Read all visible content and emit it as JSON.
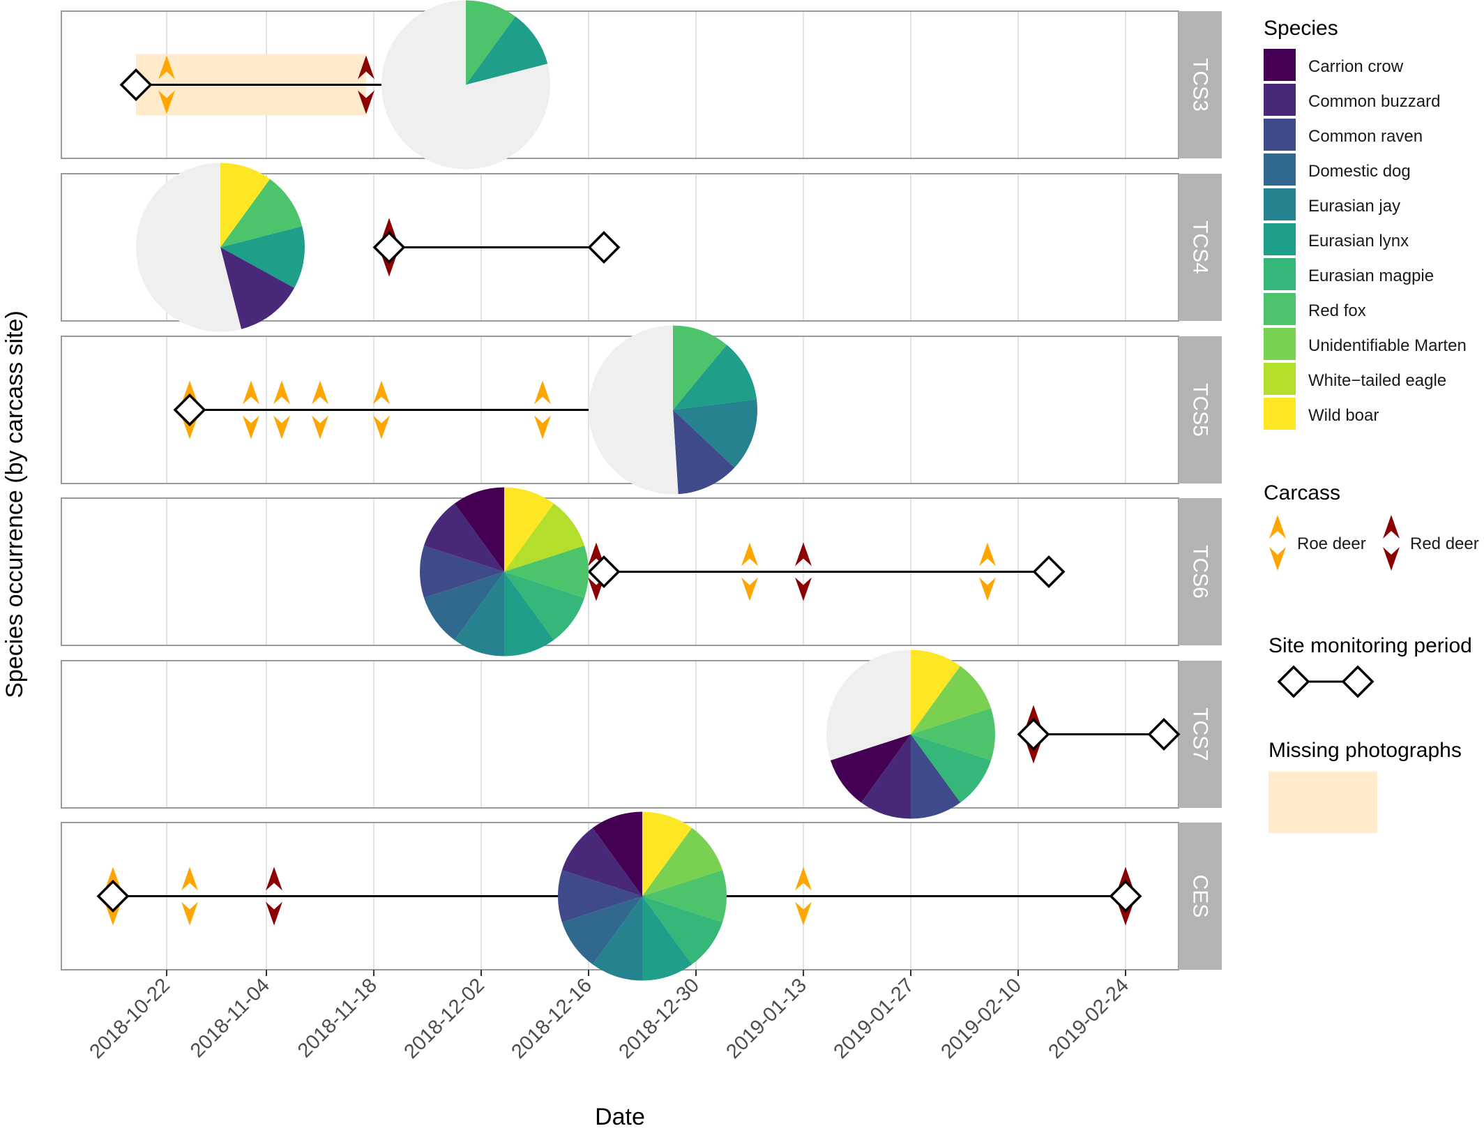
{
  "chart_data": {
    "type": "timeline",
    "xlabel": "Date",
    "ylabel": "Species occurrence (by carcass site)",
    "x_ticks": [
      "2018-10-22",
      "2018-11-04",
      "2018-11-18",
      "2018-12-02",
      "2018-12-16",
      "2018-12-30",
      "2019-01-13",
      "2019-01-27",
      "2019-02-10",
      "2019-02-24"
    ],
    "xlim": [
      "2018-10-10",
      "2019-03-02"
    ],
    "grid": true,
    "legend_position": "right",
    "species": [
      {
        "name": "Carrion crow",
        "color": "#440154"
      },
      {
        "name": "Common buzzard",
        "color": "#482878"
      },
      {
        "name": "Common raven",
        "color": "#3E4A89"
      },
      {
        "name": "Domestic dog",
        "color": "#31688E"
      },
      {
        "name": "Eurasian jay",
        "color": "#26828E"
      },
      {
        "name": "Eurasian lynx",
        "color": "#1F9E89"
      },
      {
        "name": "Eurasian magpie",
        "color": "#35B779"
      },
      {
        "name": "Red fox",
        "color": "#4DC36B"
      },
      {
        "name": "Unidentifiable Marten",
        "color": "#7AD151"
      },
      {
        "name": "White−tailed eagle",
        "color": "#B4DE2C"
      },
      {
        "name": "Wild boar",
        "color": "#FDE725"
      }
    ],
    "no_species_color": "#EFEFEF",
    "carcass_types": [
      {
        "name": "Roe deer",
        "color": "#FFA500"
      },
      {
        "name": "Red deer",
        "color": "#8B0000"
      }
    ],
    "missing_color": "#FFEBCC",
    "legend_titles": {
      "species": "Species",
      "carcass": "Carcass",
      "monitoring": "Site monitoring period",
      "missing": "Missing photographs"
    },
    "sites": [
      {
        "name": "TCS3",
        "start": "2018-10-18",
        "end": "2018-11-21",
        "missing": [
          "2018-10-18",
          "2018-11-17"
        ],
        "carcasses": [
          {
            "type": "Roe deer",
            "date": "2018-10-22"
          },
          {
            "type": "Red deer",
            "date": "2018-11-17"
          }
        ],
        "pie": {
          "center": "2018-11-30",
          "slices": [
            {
              "species": "Red fox",
              "fraction": 0.1
            },
            {
              "species": "Eurasian lynx",
              "fraction": 0.11
            },
            {
              "species": "none",
              "fraction": 0.79
            }
          ]
        }
      },
      {
        "name": "TCS4",
        "start": "2018-11-20",
        "end": "2018-12-18",
        "missing": [],
        "carcasses": [
          {
            "type": "Red deer",
            "date": "2018-11-20"
          }
        ],
        "pie": {
          "center": "2018-10-29",
          "slices": [
            {
              "species": "Wild boar",
              "fraction": 0.1
            },
            {
              "species": "Red fox",
              "fraction": 0.11
            },
            {
              "species": "Eurasian lynx",
              "fraction": 0.12
            },
            {
              "species": "Common buzzard",
              "fraction": 0.13
            },
            {
              "species": "none",
              "fraction": 0.54
            }
          ]
        }
      },
      {
        "name": "TCS5",
        "start": "2018-10-25",
        "end": "2018-12-18",
        "missing": [],
        "carcasses": [
          {
            "type": "Roe deer",
            "date": "2018-10-25"
          },
          {
            "type": "Roe deer",
            "date": "2018-11-02"
          },
          {
            "type": "Roe deer",
            "date": "2018-11-06"
          },
          {
            "type": "Roe deer",
            "date": "2018-11-11"
          },
          {
            "type": "Roe deer",
            "date": "2018-11-19"
          },
          {
            "type": "Roe deer",
            "date": "2018-12-10"
          }
        ],
        "pie": {
          "center": "2018-12-27",
          "slices": [
            {
              "species": "Red fox",
              "fraction": 0.11
            },
            {
              "species": "Eurasian lynx",
              "fraction": 0.12
            },
            {
              "species": "Eurasian jay",
              "fraction": 0.14
            },
            {
              "species": "Common raven",
              "fraction": 0.12
            },
            {
              "species": "none",
              "fraction": 0.51
            }
          ]
        }
      },
      {
        "name": "TCS6",
        "start": "2018-12-18",
        "end": "2019-02-14",
        "missing": [],
        "carcasses": [
          {
            "type": "Red deer",
            "date": "2018-12-17"
          },
          {
            "type": "Roe deer",
            "date": "2019-01-06"
          },
          {
            "type": "Red deer",
            "date": "2019-01-13"
          },
          {
            "type": "Roe deer",
            "date": "2019-02-06"
          }
        ],
        "pie": {
          "center": "2018-12-05",
          "slices": [
            {
              "species": "Wild boar",
              "fraction": 0.1
            },
            {
              "species": "White−tailed eagle",
              "fraction": 0.1
            },
            {
              "species": "Red fox",
              "fraction": 0.1
            },
            {
              "species": "Eurasian magpie",
              "fraction": 0.1
            },
            {
              "species": "Eurasian lynx",
              "fraction": 0.1
            },
            {
              "species": "Eurasian jay",
              "fraction": 0.1
            },
            {
              "species": "Domestic dog",
              "fraction": 0.1
            },
            {
              "species": "Common raven",
              "fraction": 0.1
            },
            {
              "species": "Common buzzard",
              "fraction": 0.1
            },
            {
              "species": "Carrion crow",
              "fraction": 0.1
            }
          ]
        }
      },
      {
        "name": "TCS7",
        "start": "2019-02-12",
        "end": "2019-03-01",
        "missing": [],
        "carcasses": [
          {
            "type": "Red deer",
            "date": "2019-02-12"
          }
        ],
        "pie": {
          "center": "2019-01-27",
          "slices": [
            {
              "species": "Wild boar",
              "fraction": 0.1
            },
            {
              "species": "Unidentifiable Marten",
              "fraction": 0.1
            },
            {
              "species": "Red fox",
              "fraction": 0.1
            },
            {
              "species": "Eurasian magpie",
              "fraction": 0.1
            },
            {
              "species": "Common raven",
              "fraction": 0.1
            },
            {
              "species": "Common buzzard",
              "fraction": 0.1
            },
            {
              "species": "Carrion crow",
              "fraction": 0.1
            },
            {
              "species": "none",
              "fraction": 0.3
            }
          ]
        }
      },
      {
        "name": "CES",
        "start": "2018-10-15",
        "end": "2019-02-24",
        "missing": [],
        "carcasses": [
          {
            "type": "Roe deer",
            "date": "2018-10-15"
          },
          {
            "type": "Roe deer",
            "date": "2018-10-25"
          },
          {
            "type": "Red deer",
            "date": "2018-11-05"
          },
          {
            "type": "Roe deer",
            "date": "2019-01-13"
          },
          {
            "type": "Red deer",
            "date": "2019-02-24"
          }
        ],
        "pie": {
          "center": "2018-12-23",
          "slices": [
            {
              "species": "Wild boar",
              "fraction": 0.1
            },
            {
              "species": "Unidentifiable Marten",
              "fraction": 0.1
            },
            {
              "species": "Red fox",
              "fraction": 0.1
            },
            {
              "species": "Eurasian magpie",
              "fraction": 0.1
            },
            {
              "species": "Eurasian lynx",
              "fraction": 0.1
            },
            {
              "species": "Eurasian jay",
              "fraction": 0.1
            },
            {
              "species": "Domestic dog",
              "fraction": 0.1
            },
            {
              "species": "Common raven",
              "fraction": 0.1
            },
            {
              "species": "Common buzzard",
              "fraction": 0.1
            },
            {
              "species": "Carrion crow",
              "fraction": 0.1
            }
          ]
        }
      }
    ]
  }
}
